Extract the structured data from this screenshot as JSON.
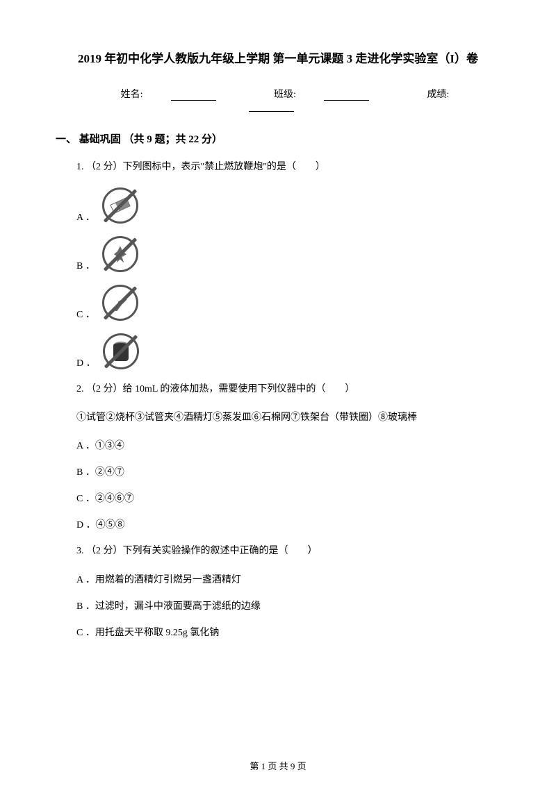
{
  "title": "2019 年初中化学人教版九年级上学期 第一单元课题 3 走进化学实验室（I）卷",
  "info": {
    "name_label": "姓名:",
    "class_label": "班级:",
    "score_label": "成绩:"
  },
  "section": {
    "label": "一、 基础巩固 （共 9 题；共 22 分）"
  },
  "q1": {
    "text": "1. （2 分）下列图标中，表示\"禁止燃放鞭炮\"的是（　　）",
    "opt_a": "A ．",
    "opt_b": "B ．",
    "opt_c": "C ．",
    "opt_d": "D ．"
  },
  "q2": {
    "text": "2. （2 分）给 10mL 的液体加热，需要使用下列仪器中的（　　）",
    "items": "①试管②烧杯③试管夹④酒精灯⑤蒸发皿⑥石棉网⑦铁架台（带铁圈）⑧玻璃棒",
    "opt_a": "A ．①③④",
    "opt_b": "B ．②④⑦",
    "opt_c": "C ．②④⑥⑦",
    "opt_d": "D ．④⑤⑧"
  },
  "q3": {
    "text": "3. （2 分）下列有关实验操作的叙述中正确的是（　　）",
    "opt_a": "A ．用燃着的酒精灯引燃另一盏酒精灯",
    "opt_b": "B ．过滤时，漏斗中液面要高于滤纸的边缘",
    "opt_c": "C ．用托盘天平称取 9.25g 氯化钠"
  },
  "footer": "第 1 页 共 9 页"
}
